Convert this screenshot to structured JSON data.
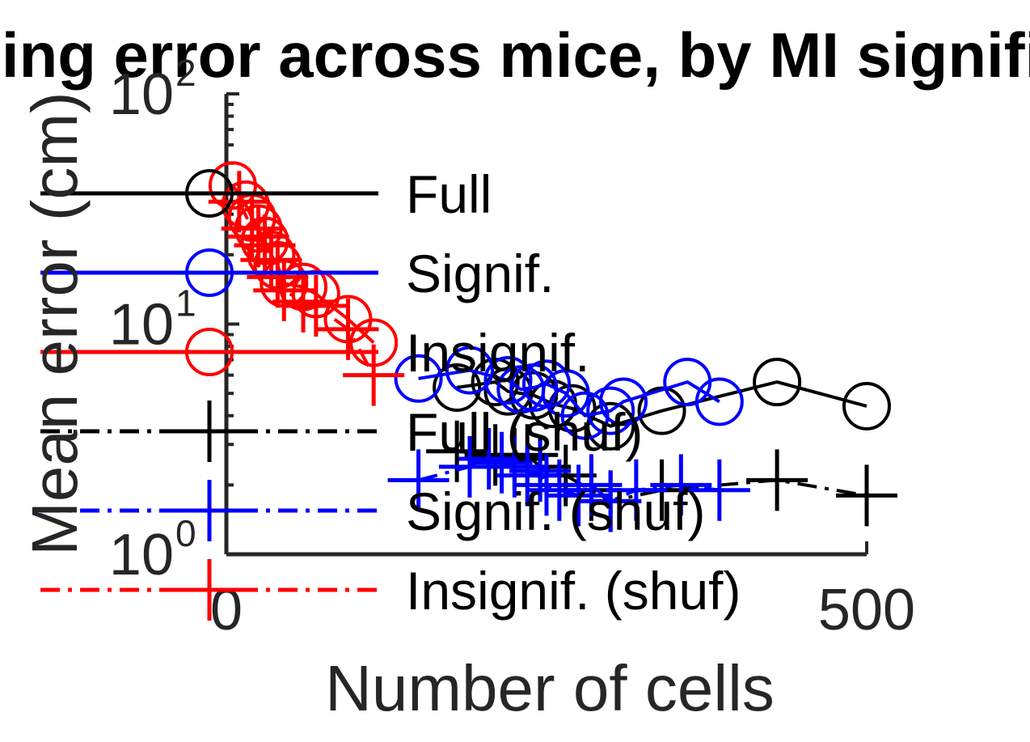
{
  "chart_data": {
    "type": "line",
    "title": "Decoding error across mice, by MI significance",
    "xlabel": "Number of cells",
    "ylabel": "Mean error (cm)",
    "xlim": [
      0,
      500
    ],
    "ylim": [
      1,
      100
    ],
    "yscale": "log",
    "x_ticks": [
      {
        "value": 0,
        "label": "0"
      },
      {
        "value": 500,
        "label": "500"
      }
    ],
    "y_ticks": [
      {
        "value": 1,
        "base": "10",
        "exp": "0"
      },
      {
        "value": 10,
        "base": "10",
        "exp": "1"
      },
      {
        "value": 100,
        "base": "10",
        "exp": "2"
      }
    ],
    "grid": false,
    "legend_position": "top-left",
    "series": [
      {
        "name": "Full",
        "color": "#000000",
        "dash": "solid",
        "marker": "circle",
        "x": [
          180,
          210,
          220,
          240,
          255,
          270,
          300,
          340,
          430,
          500
        ],
        "y": [
          5.3,
          5.6,
          5.1,
          4.9,
          4.5,
          4.3,
          3.6,
          4.2,
          5.6,
          4.4
        ]
      },
      {
        "name": "Signif.",
        "color": "#0000ff",
        "dash": "solid",
        "marker": "circle",
        "x": [
          150,
          190,
          220,
          230,
          240,
          250,
          265,
          280,
          300,
          310,
          360,
          385
        ],
        "y": [
          5.8,
          6.3,
          5.7,
          5.2,
          5.3,
          5.5,
          5.0,
          4.0,
          4.2,
          4.6,
          5.6,
          4.6
        ]
      },
      {
        "name": "Insignif.",
        "color": "#ff0000",
        "dash": "solid",
        "marker": "circle",
        "x": [
          5,
          15,
          20,
          25,
          30,
          35,
          40,
          45,
          60,
          70,
          95,
          115
        ],
        "y": [
          40,
          33,
          29,
          26,
          23,
          20,
          18,
          15,
          14.5,
          13.5,
          10.5,
          8.3
        ]
      },
      {
        "name": "Full (shuf)",
        "color": "#000000",
        "dash": "dashdot",
        "marker": "plus",
        "x": [
          180,
          210,
          225,
          235,
          245,
          265,
          285,
          300,
          340,
          430,
          500
        ],
        "y": [
          2.8,
          2.7,
          2.6,
          2.7,
          2.4,
          2.2,
          1.9,
          1.7,
          1.9,
          2.1,
          1.8
        ]
      },
      {
        "name": "Signif. (shuf)",
        "color": "#0000ff",
        "dash": "dashdot",
        "marker": "plus",
        "x": [
          150,
          190,
          205,
          215,
          225,
          235,
          245,
          250,
          260,
          275,
          285,
          300,
          320,
          355,
          385
        ],
        "y": [
          2.1,
          2.4,
          2.6,
          2.5,
          2.4,
          2.2,
          2.3,
          2.0,
          1.9,
          1.8,
          2.0,
          1.7,
          1.9,
          2.0,
          1.9
        ]
      },
      {
        "name": "Insignif. (shuf)",
        "color": "#ff0000",
        "dash": "dashdot",
        "marker": "plus",
        "x": [
          10,
          20,
          25,
          30,
          35,
          40,
          45,
          60,
          70,
          95,
          115
        ],
        "y": [
          34,
          26,
          24,
          22,
          19,
          16,
          14,
          12.5,
          12,
          9.5,
          6
        ]
      }
    ]
  }
}
